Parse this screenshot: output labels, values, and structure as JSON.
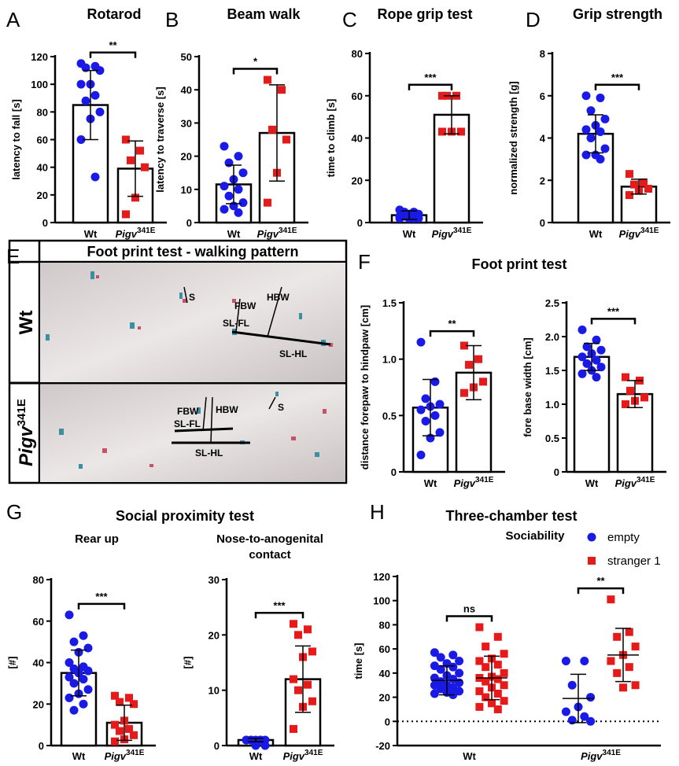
{
  "panel_labels": [
    "A",
    "B",
    "C",
    "D",
    "E",
    "F",
    "G",
    "H"
  ],
  "group_titles": [
    "Foot print test",
    "Social proximity test"
  ],
  "footprint": {
    "title": "Foot print test - walking pattern",
    "rows": [
      {
        "label": "Wt",
        "annotations": [
          "S",
          "FBW",
          "HBW",
          "SL-FL",
          "SL-HL"
        ]
      },
      {
        "label": "Pigv",
        "superscript": "341E",
        "annotations": [
          "FBW",
          "HBW",
          "S",
          "SL-FL",
          "SL-HL"
        ]
      }
    ]
  },
  "chart_data": [
    {
      "type": "dotbar",
      "title": "Rotarod",
      "ylabel": "latency to fall [s]",
      "categories": [
        "Wt",
        "Pigv"
      ],
      "superscripts": [
        null,
        "341E"
      ],
      "values": [
        85,
        39
      ],
      "errors": [
        25,
        20
      ],
      "colors": [
        "#1a1ae6",
        "#e61a1a"
      ],
      "markers": [
        "circle",
        "square"
      ],
      "points": [
        [
          115,
          113,
          112,
          110,
          100,
          100,
          92,
          88,
          80,
          75,
          60,
          33
        ],
        [
          60,
          52,
          45,
          40,
          18,
          6
        ]
      ],
      "significance": "**",
      "ylim": [
        0,
        120
      ],
      "yticks": [
        0,
        20,
        40,
        60,
        80,
        100,
        120
      ]
    },
    {
      "type": "dotbar",
      "title": "Beam walk",
      "ylabel": "latency to traverse [s]",
      "categories": [
        "Wt",
        "Pigv"
      ],
      "superscripts": [
        null,
        "341E"
      ],
      "values": [
        11.5,
        27
      ],
      "errors": [
        5.8,
        14.5
      ],
      "colors": [
        "#1a1ae6",
        "#e61a1a"
      ],
      "markers": [
        "circle",
        "square"
      ],
      "points": [
        [
          23,
          20,
          18,
          15,
          13,
          11,
          10,
          8,
          6,
          5,
          4,
          3
        ],
        [
          43,
          40,
          28,
          25,
          15,
          6
        ]
      ],
      "significance": "*",
      "ylim": [
        0,
        50
      ],
      "yticks": [
        0,
        10,
        20,
        30,
        40,
        50
      ]
    },
    {
      "type": "dotbar",
      "title": "Rope grip test",
      "ylabel": "time to climb [s]",
      "categories": [
        "Wt",
        "Pigv"
      ],
      "superscripts": [
        null,
        "341E"
      ],
      "values": [
        3.5,
        51
      ],
      "errors": [
        2,
        9
      ],
      "colors": [
        "#1a1ae6",
        "#e61a1a"
      ],
      "markers": [
        "circle",
        "square"
      ],
      "points": [
        [
          6,
          5,
          5,
          4,
          4,
          3,
          3,
          3,
          2,
          2,
          2,
          2
        ],
        [
          60,
          60,
          60,
          43,
          43,
          43
        ]
      ],
      "significance": "***",
      "ylim": [
        0,
        80
      ],
      "yticks": [
        0,
        20,
        40,
        60,
        80
      ]
    },
    {
      "type": "dotbar",
      "title": "Grip strength",
      "ylabel": "normalized strength [g]",
      "categories": [
        "Wt",
        "Pigv"
      ],
      "superscripts": [
        null,
        "341E"
      ],
      "values": [
        4.2,
        1.7
      ],
      "errors": [
        0.9,
        0.35
      ],
      "colors": [
        "#1a1ae6",
        "#e61a1a"
      ],
      "markers": [
        "circle",
        "square"
      ],
      "points": [
        [
          6.0,
          5.9,
          5.3,
          4.9,
          4.6,
          4.4,
          4.3,
          4.0,
          3.5,
          3.2,
          3.2,
          3.0
        ],
        [
          2.3,
          1.9,
          1.8,
          1.6,
          1.5,
          1.3
        ]
      ],
      "significance": "***",
      "ylim": [
        0,
        8
      ],
      "yticks": [
        0,
        2,
        4,
        6,
        8
      ]
    },
    {
      "type": "dotbar",
      "ylabel": "distance forepaw to hindpaw [cm]",
      "categories": [
        "Wt",
        "Pigv"
      ],
      "superscripts": [
        null,
        "341E"
      ],
      "values": [
        0.57,
        0.88
      ],
      "errors": [
        0.25,
        0.24
      ],
      "colors": [
        "#1a1ae6",
        "#e61a1a"
      ],
      "markers": [
        "circle",
        "square"
      ],
      "points": [
        [
          1.15,
          0.8,
          0.65,
          0.6,
          0.58,
          0.55,
          0.5,
          0.45,
          0.35,
          0.3,
          0.15
        ],
        [
          1.12,
          1.0,
          0.95,
          0.8,
          0.75,
          0.7
        ]
      ],
      "significance": "**",
      "ylim": [
        0,
        1.5
      ],
      "yticks": [
        0,
        0.5,
        {
          "value": 1,
          "label": "1.0"
        },
        1.5
      ]
    },
    {
      "type": "dotbar",
      "ylabel": "fore base width [cm]",
      "categories": [
        "Wt",
        "Pigv"
      ],
      "superscripts": [
        null,
        "341E"
      ],
      "values": [
        1.7,
        1.15
      ],
      "errors": [
        0.2,
        0.2
      ],
      "colors": [
        "#1a1ae6",
        "#e61a1a"
      ],
      "markers": [
        "circle",
        "square"
      ],
      "points": [
        [
          2.1,
          1.95,
          1.85,
          1.8,
          1.75,
          1.7,
          1.65,
          1.6,
          1.55,
          1.5,
          1.45,
          1.4
        ],
        [
          1.4,
          1.35,
          1.2,
          1.1,
          1.05,
          1.0
        ]
      ],
      "significance": "***",
      "ylim": [
        0,
        2.5
      ],
      "yticks": [
        0,
        0.5,
        {
          "value": 1,
          "label": "1.0"
        },
        1.5,
        {
          "value": 2,
          "label": "2.0"
        },
        2.5
      ]
    },
    {
      "type": "dotbar",
      "title": "Rear up",
      "ylabel": "[#]",
      "categories": [
        "Wt",
        "Pigv"
      ],
      "superscripts": [
        null,
        "341E"
      ],
      "values": [
        35,
        11
      ],
      "errors": [
        11,
        8.5
      ],
      "colors": [
        "#1a1ae6",
        "#e61a1a"
      ],
      "markers": [
        "circle",
        "square"
      ],
      "points": [
        [
          63,
          53,
          50,
          47,
          45,
          40,
          38,
          37,
          36,
          35,
          33,
          32,
          30,
          27,
          25,
          23,
          20,
          17
        ],
        [
          24,
          23,
          21,
          20,
          12,
          10,
          8,
          7,
          5,
          3,
          2
        ]
      ],
      "significance": "***",
      "ylim": [
        0,
        80
      ],
      "yticks": [
        0,
        20,
        40,
        60,
        80
      ]
    },
    {
      "type": "dotbar",
      "title": "Nose-to-anogenital contact",
      "ylabel": "[#]",
      "categories": [
        "Wt",
        "Pigv"
      ],
      "superscripts": [
        null,
        "341E"
      ],
      "values": [
        1,
        12
      ],
      "errors": [
        0.3,
        6
      ],
      "colors": [
        "#1a1ae6",
        "#e61a1a"
      ],
      "markers": [
        "circle",
        "square"
      ],
      "points": [
        [
          1,
          1,
          1,
          1,
          1,
          1,
          1,
          1,
          0,
          0
        ],
        [
          22,
          21,
          20,
          17,
          16,
          12,
          11,
          10,
          8,
          7,
          3
        ]
      ],
      "significance": "***",
      "ylim": [
        0,
        30
      ],
      "yticks": [
        0,
        10,
        20,
        30
      ]
    },
    {
      "type": "dotplot",
      "title": "Three-chamber test",
      "subtitle": "Sociability",
      "ylabel": "time [s]",
      "categories": [
        "Wt",
        "Pigv"
      ],
      "superscripts": [
        null,
        "341E"
      ],
      "zero_line": true,
      "series": [
        {
          "name": "empty",
          "color": "#1a1ae6",
          "marker": "circle",
          "values": [
            34,
            19
          ],
          "errors": [
            12,
            20
          ],
          "points": [
            [
              57,
              55,
              53,
              50,
              48,
              46,
              45,
              43,
              40,
              38,
              36,
              35,
              33,
              32,
              30,
              30,
              28,
              27,
              25,
              24,
              23,
              22
            ],
            [
              50,
              50,
              30,
              20,
              12,
              8,
              4,
              1,
              0
            ]
          ]
        },
        {
          "name": "stranger 1",
          "color": "#e61a1a",
          "marker": "square",
          "values": [
            36,
            55
          ],
          "errors": [
            18,
            22
          ],
          "points": [
            [
              78,
              70,
              62,
              56,
              52,
              50,
              47,
              45,
              40,
              37,
              36,
              35,
              33,
              30,
              28,
              25,
              23,
              20,
              17,
              15,
              12,
              10
            ],
            [
              101,
              74,
              70,
              62,
              55,
              50,
              45,
              40,
              30,
              28
            ]
          ]
        }
      ],
      "significance": [
        "ns",
        "**"
      ],
      "ylim": [
        -20,
        120
      ],
      "yticks": [
        -20,
        0,
        20,
        40,
        60,
        80,
        100,
        120
      ]
    }
  ]
}
